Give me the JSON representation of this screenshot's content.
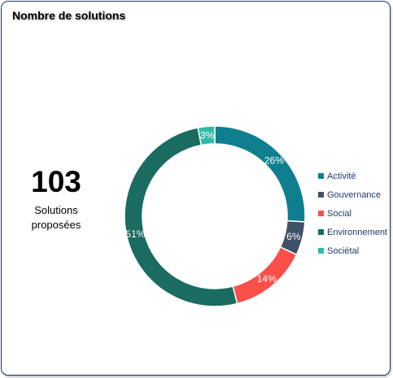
{
  "card": {
    "title": "Nombre de solutions"
  },
  "kpi": {
    "value": "103",
    "label": "Solutions\nproposées"
  },
  "chart_data": {
    "type": "pie",
    "subtype": "donut",
    "title": "",
    "legend_position": "right",
    "categories": [
      "Activité",
      "Gouvernance",
      "Social",
      "Environnement",
      "Sociétal"
    ],
    "values": [
      26,
      6,
      14,
      51,
      3
    ],
    "labels": [
      "26%",
      "6%",
      "14%",
      "51%",
      "3%"
    ],
    "unit": "%",
    "colors": [
      "#0f7f8f",
      "#3e5168",
      "#fb4f49",
      "#1a6b60",
      "#2fbaa6"
    ]
  }
}
